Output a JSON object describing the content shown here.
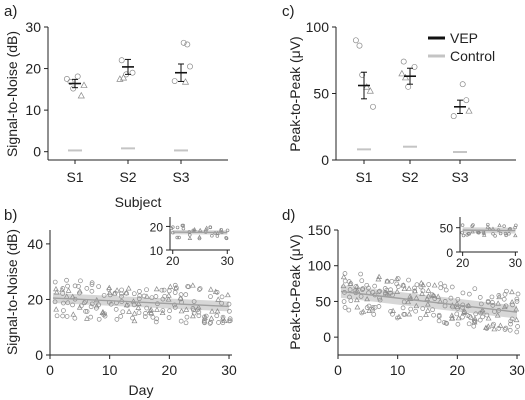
{
  "figure": {
    "legend": {
      "placement": "top-right of panel c",
      "entries": [
        {
          "label": "VEP",
          "color": "#111111"
        },
        {
          "label": "Control",
          "color": "#c4c4c4"
        }
      ]
    }
  },
  "chart_data": [
    {
      "id": "a",
      "panel_label": "a)",
      "type": "scatter",
      "xlabel": "Subject",
      "ylabel": "Signal-to-Noise (dB)",
      "categories": [
        "S1",
        "S2",
        "S3"
      ],
      "ylim": [
        -2,
        30
      ],
      "yticks": [
        0,
        10,
        20,
        30
      ],
      "points": [
        {
          "cat": 0,
          "y": 17.5,
          "m": "circle"
        },
        {
          "cat": 0,
          "y": 16.8,
          "m": "circle"
        },
        {
          "cat": 0,
          "y": 15.2,
          "m": "circle"
        },
        {
          "cat": 0,
          "y": 18.1,
          "m": "circle"
        },
        {
          "cat": 0,
          "y": 13.5,
          "m": "tri"
        },
        {
          "cat": 0,
          "y": 16.0,
          "m": "tri"
        },
        {
          "cat": 1,
          "y": 22.0,
          "m": "circle"
        },
        {
          "cat": 1,
          "y": 19.0,
          "m": "circle"
        },
        {
          "cat": 1,
          "y": 17.5,
          "m": "tri"
        },
        {
          "cat": 1,
          "y": 17.8,
          "m": "tri"
        },
        {
          "cat": 1,
          "y": 18.6,
          "m": "circle"
        },
        {
          "cat": 2,
          "y": 26.2,
          "m": "circle"
        },
        {
          "cat": 2,
          "y": 25.8,
          "m": "circle"
        },
        {
          "cat": 2,
          "y": 20.5,
          "m": "circle"
        },
        {
          "cat": 2,
          "y": 17.0,
          "m": "circle"
        },
        {
          "cat": 2,
          "y": 16.8,
          "m": "tri"
        }
      ],
      "vep": [
        {
          "cat": 0,
          "mean": 16.4,
          "lo": 15.4,
          "hi": 17.4
        },
        {
          "cat": 1,
          "mean": 20.4,
          "lo": 18.6,
          "hi": 22.2
        },
        {
          "cat": 2,
          "mean": 19.0,
          "lo": 16.9,
          "hi": 21.1
        }
      ],
      "control": [
        {
          "cat": 0,
          "mean": 0.3
        },
        {
          "cat": 1,
          "mean": 0.8
        },
        {
          "cat": 2,
          "mean": 0.3
        }
      ]
    },
    {
      "id": "b",
      "panel_label": "b)",
      "type": "scatter",
      "xlabel": "Day",
      "ylabel": "Signal-to-Noise (dB)",
      "xlim": [
        0,
        30.5
      ],
      "xticks": [
        0,
        10,
        20,
        30
      ],
      "ylim": [
        0,
        45
      ],
      "yticks": [
        0,
        20,
        40
      ],
      "trend": {
        "x0": 0.5,
        "y0": 20.5,
        "x1": 30,
        "y1": 17.5,
        "band": 1.8
      },
      "inset": {
        "xlim": [
          19.5,
          30.5
        ],
        "xticks": [
          20,
          30
        ],
        "ylim": [
          10,
          24
        ],
        "yticks": [
          10,
          20
        ],
        "trend": {
          "x0": 20,
          "y0": 17.6,
          "x1": 30,
          "y1": 17.4,
          "band": 0.9
        }
      }
    },
    {
      "id": "c",
      "panel_label": "c)",
      "type": "scatter",
      "xlabel": "",
      "ylabel": "Peak-to-Peak (μV)",
      "categories": [
        "S1",
        "S2",
        "S3"
      ],
      "ylim": [
        0,
        100
      ],
      "yticks": [
        0,
        50,
        100
      ],
      "points": [
        {
          "cat": 0,
          "y": 90,
          "m": "circle"
        },
        {
          "cat": 0,
          "y": 86,
          "m": "circle"
        },
        {
          "cat": 0,
          "y": 64,
          "m": "circle"
        },
        {
          "cat": 0,
          "y": 55,
          "m": "tri"
        },
        {
          "cat": 0,
          "y": 52,
          "m": "tri"
        },
        {
          "cat": 0,
          "y": 40,
          "m": "circle"
        },
        {
          "cat": 1,
          "y": 74,
          "m": "circle"
        },
        {
          "cat": 1,
          "y": 70,
          "m": "circle"
        },
        {
          "cat": 1,
          "y": 65,
          "m": "tri"
        },
        {
          "cat": 1,
          "y": 62,
          "m": "tri"
        },
        {
          "cat": 1,
          "y": 55,
          "m": "circle"
        },
        {
          "cat": 2,
          "y": 57,
          "m": "circle"
        },
        {
          "cat": 2,
          "y": 45,
          "m": "circle"
        },
        {
          "cat": 2,
          "y": 37,
          "m": "tri"
        },
        {
          "cat": 2,
          "y": 33,
          "m": "circle"
        }
      ],
      "vep": [
        {
          "cat": 0,
          "mean": 56,
          "lo": 46,
          "hi": 66
        },
        {
          "cat": 1,
          "mean": 63,
          "lo": 57,
          "hi": 69
        },
        {
          "cat": 2,
          "mean": 40,
          "lo": 35,
          "hi": 45
        }
      ],
      "control": [
        {
          "cat": 0,
          "mean": 8
        },
        {
          "cat": 1,
          "mean": 10
        },
        {
          "cat": 2,
          "mean": 6
        }
      ]
    },
    {
      "id": "d",
      "panel_label": "d)",
      "type": "scatter",
      "xlabel": "",
      "ylabel": "Peak-to-Peak (μV)",
      "xlim": [
        0,
        30.5
      ],
      "xticks": [
        0,
        10,
        20,
        30
      ],
      "ylim": [
        -25,
        150
      ],
      "yticks": [
        0,
        50,
        100,
        150
      ],
      "trend": {
        "x0": 0.5,
        "y0": 64,
        "x1": 30,
        "y1": 35,
        "band": 9
      },
      "inset": {
        "xlim": [
          19.5,
          30.5
        ],
        "xticks": [
          20,
          30
        ],
        "ylim": [
          0,
          72
        ],
        "yticks": [
          0,
          50
        ],
        "trend": {
          "x0": 20,
          "y0": 45,
          "x1": 30,
          "y1": 44,
          "band": 6
        }
      }
    }
  ]
}
